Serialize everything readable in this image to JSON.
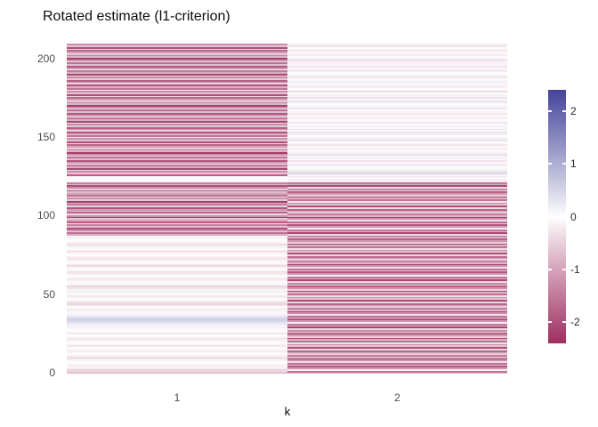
{
  "title": "Rotated estimate (l1-criterion)",
  "axes": {
    "x_label": "k",
    "x_ticks": [
      "1",
      "2"
    ],
    "y_ticks": [
      0,
      50,
      100,
      150,
      200
    ]
  },
  "legend": {
    "tick_labels": [
      "2",
      "1",
      "0",
      "-1",
      "-2"
    ],
    "tick_values": [
      2,
      1,
      0,
      -1,
      -2
    ],
    "vmin": -2.4,
    "vmax": 2.4,
    "color_negative": "#9e2f60",
    "color_zero": "#ffffff",
    "color_positive": "#45449a"
  },
  "chart_data": {
    "type": "heatmap",
    "title": "Rotated estimate (l1-criterion)",
    "xlabel": "k",
    "ylabel": "",
    "categories_x": [
      "1",
      "2"
    ],
    "n_rows": 210,
    "ylim": [
      0,
      209
    ],
    "color_scale": {
      "low": "#9e2f60",
      "mid": "#ffffff",
      "high": "#45449a",
      "limits": [
        -2.4,
        2.4
      ]
    },
    "series": [
      {
        "name": "k=1",
        "values": [
          -0.85,
          -0.5,
          -0.45,
          -0.2,
          -0.1,
          -0.3,
          -0.05,
          0.02,
          -0.12,
          -0.3,
          -0.35,
          -0.15,
          0.05,
          -0.08,
          -0.2,
          -0.1,
          0.03,
          -0.25,
          -0.15,
          -0.05,
          0.08,
          -0.18,
          -0.3,
          -0.1,
          0.02,
          -0.22,
          -0.12,
          -0.04,
          0.06,
          -0.15,
          0.1,
          0.2,
          0.32,
          0.48,
          0.55,
          0.5,
          0.3,
          0.15,
          -0.1,
          0.05,
          -0.2,
          -0.15,
          0.02,
          -0.3,
          -0.42,
          -0.35,
          -0.1,
          0.04,
          -0.15,
          -0.25,
          -0.05,
          0.1,
          -0.2,
          -0.1,
          -0.3,
          -0.45,
          -0.2,
          -0.05,
          0.06,
          -0.15,
          -0.35,
          -0.1,
          0.02,
          -0.2,
          -0.3,
          -0.15,
          0.05,
          -0.1,
          -0.4,
          -0.25,
          -0.05,
          0.08,
          -0.2,
          -0.35,
          -0.15,
          0.03,
          -0.1,
          -0.3,
          -0.2,
          -0.05,
          0.1,
          -0.25,
          -0.4,
          -0.15,
          -0.05,
          0.05,
          -0.2,
          -0.1,
          -0.9,
          -1.6,
          -0.5,
          -1.2,
          -2.0,
          -0.7,
          -1.4,
          -0.3,
          -1.8,
          -1.0,
          -0.6,
          -2.1,
          -1.3,
          -0.4,
          -1.7,
          -0.8,
          -1.1,
          -1.9,
          -0.5,
          -1.5,
          -0.9,
          -2.2,
          -0.6,
          -1.2,
          -0.4,
          -1.6,
          -1.0,
          -0.7,
          -1.8,
          -0.5,
          -1.3,
          -2.0,
          -0.8,
          -1.4,
          -0.1,
          0.05,
          -0.05,
          -0.15,
          -1.8,
          -0.6,
          -1.3,
          -0.4,
          -2.1,
          -0.9,
          -1.5,
          -0.2,
          -1.1,
          -1.9,
          -0.7,
          -1.6,
          -0.35,
          -1.2,
          -2.2,
          -0.8,
          -1.4,
          -0.55,
          -1.0,
          -1.7,
          -0.45,
          -2.0,
          -0.65,
          -1.25,
          -0.3,
          -1.55,
          -0.85,
          -1.95,
          -0.5,
          -1.15,
          -1.8,
          -0.6,
          -1.3,
          -0.4,
          -2.1,
          -0.9,
          -1.5,
          -0.2,
          -1.1,
          -1.9,
          -0.7,
          -1.6,
          -0.35,
          -1.2,
          -2.2,
          -0.8,
          -1.4,
          -0.55,
          -1.0,
          -1.7,
          -0.45,
          -2.0,
          -0.65,
          -1.25,
          -0.3,
          -1.55,
          -0.85,
          -1.95,
          -0.5,
          -1.15,
          -1.8,
          -0.6,
          -1.3,
          -0.4,
          -2.1,
          -0.9,
          -1.5,
          -0.2,
          -1.1,
          -1.9,
          -0.7,
          -1.6,
          -0.35,
          -1.2,
          -2.2,
          -0.8,
          -1.4,
          -0.55,
          -1.0,
          -1.7,
          -0.45,
          -2.0,
          -0.65,
          -1.25
        ]
      },
      {
        "name": "k=2",
        "values": [
          -0.9,
          -1.5,
          -0.2,
          -1.1,
          -1.9,
          -0.7,
          -1.6,
          -0.35,
          -1.2,
          -2.2,
          -0.8,
          -1.4,
          -0.55,
          -1.0,
          -1.7,
          -0.45,
          -2.0,
          -0.65,
          -1.25,
          -0.3,
          -1.55,
          -0.85,
          -1.95,
          -0.5,
          -1.15,
          -1.8,
          -0.6,
          -1.3,
          -0.4,
          -2.1,
          -0.9,
          -1.5,
          -0.2,
          -1.1,
          -1.9,
          -0.7,
          -1.6,
          -0.35,
          -1.2,
          -2.2,
          -0.8,
          -1.4,
          -0.55,
          -1.0,
          -1.7,
          -0.45,
          -2.0,
          -0.65,
          -1.25,
          -0.3,
          -1.55,
          -0.85,
          -1.95,
          -0.5,
          -1.15,
          -1.8,
          -0.6,
          -1.3,
          -0.4,
          -2.1,
          -0.9,
          -1.5,
          -0.2,
          -1.1,
          -1.9,
          -0.7,
          -1.6,
          -0.35,
          -1.2,
          -2.2,
          -0.8,
          -1.4,
          -0.55,
          -1.0,
          -1.7,
          -0.45,
          -2.0,
          -0.65,
          -1.25,
          -0.3,
          -1.55,
          -0.85,
          -1.95,
          -0.5,
          -1.15,
          -1.8,
          -0.6,
          -1.3,
          -0.4,
          -2.1,
          -0.9,
          -1.5,
          -0.2,
          -1.1,
          -1.9,
          -0.7,
          -1.6,
          -0.35,
          -1.2,
          -2.2,
          -0.8,
          -1.4,
          -0.55,
          -1.0,
          -1.7,
          -0.45,
          -2.0,
          -0.65,
          -1.25,
          -0.3,
          -1.55,
          -0.85,
          -1.95,
          -0.5,
          -1.15,
          -1.8,
          -0.6,
          -1.3,
          -0.4,
          -2.1,
          -0.9,
          -1.5,
          -0.2,
          -0.15,
          0.08,
          -0.25,
          0.12,
          0.45,
          -0.3,
          0.18,
          -0.1,
          0.03,
          -0.2,
          0.25,
          -0.08,
          -0.28,
          0.1,
          -0.15,
          0.05,
          -0.35,
          0.15,
          -0.05,
          -0.18,
          -0.15,
          0.08,
          -0.25,
          0.12,
          -0.05,
          -0.3,
          0.18,
          -0.1,
          0.03,
          -0.2,
          0.25,
          -0.08,
          -0.28,
          0.1,
          -0.15,
          0.05,
          -0.35,
          0.15,
          -0.05,
          -0.18,
          -0.15,
          0.08,
          -0.25,
          0.12,
          -0.05,
          -0.3,
          0.18,
          -0.1,
          0.03,
          -0.2,
          0.25,
          -0.08,
          -0.28,
          0.1,
          -0.15,
          0.05,
          -0.35,
          0.15,
          -0.05,
          -0.18,
          -0.15,
          0.08,
          -0.25,
          0.12,
          -0.05,
          -0.3,
          0.18,
          -0.1,
          0.03,
          -0.2,
          0.25,
          -0.08,
          -0.28,
          0.1,
          -0.15,
          0.05,
          -0.35,
          0.15,
          -0.05,
          -0.18,
          -0.15,
          0.08,
          -0.25,
          0.12,
          -0.05,
          -0.3,
          0.18
        ]
      }
    ]
  },
  "layout_colors": {
    "background": "#ffffff",
    "axis_text": "#4d4d4d",
    "title_text": "#0d0d0d"
  }
}
